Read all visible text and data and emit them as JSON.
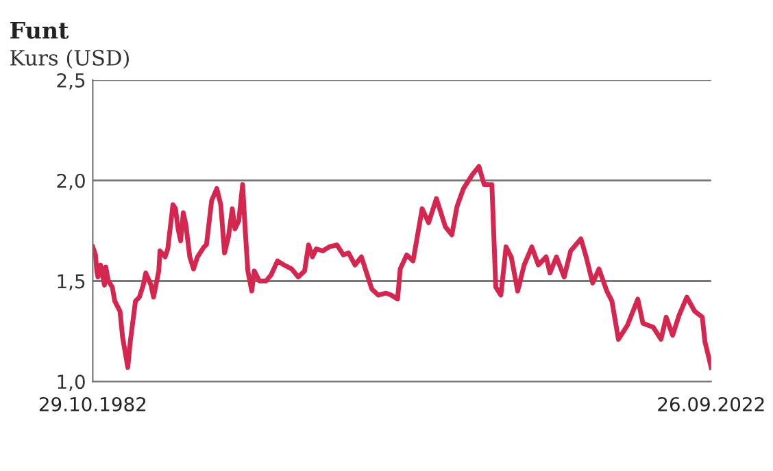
{
  "chart_data": {
    "type": "line",
    "title": "Funt",
    "subtitle": "Kurs (USD)",
    "x": [
      "1982-10-29",
      "1983-01",
      "1983-02",
      "1983-03",
      "1983-05",
      "1983-08",
      "1983-09",
      "1983-11",
      "1984-02",
      "1984-04",
      "1984-08",
      "1984-10",
      "1985-02",
      "1985-04",
      "1985-08",
      "1985-11",
      "1986-02",
      "1986-04",
      "1986-08",
      "1986-10",
      "1987-02",
      "1987-03",
      "1987-07",
      "1987-09",
      "1988-01",
      "1988-03",
      "1988-05",
      "1988-07",
      "1988-09",
      "1988-11",
      "1989-02",
      "1989-05",
      "1989-08",
      "1990-01",
      "1990-03",
      "1990-07",
      "1990-11",
      "1991-02",
      "1991-05",
      "1991-08",
      "1991-11",
      "1992-01",
      "1992-04",
      "1992-07",
      "1992-09",
      "1992-11",
      "1993-02",
      "1993-04",
      "1993-08",
      "1994-01",
      "1994-05",
      "1994-10",
      "1995-03",
      "1995-09",
      "1996-02",
      "1996-07",
      "1996-10",
      "1997-01",
      "1997-04",
      "1997-09",
      "1998-02",
      "1998-08",
      "1999-01",
      "1999-05",
      "1999-10",
      "2000-03",
      "2000-08",
      "2000-11",
      "2001-04",
      "2001-10",
      "2002-02",
      "2002-07",
      "2002-09",
      "2003-02",
      "2003-07",
      "2004-02",
      "2004-07",
      "2005-01",
      "2005-08",
      "2006-01",
      "2006-05",
      "2006-10",
      "2007-05",
      "2007-10",
      "2008-02",
      "2008-08",
      "2008-11",
      "2009-03",
      "2009-07",
      "2009-11",
      "2010-04",
      "2010-09",
      "2011-03",
      "2011-08",
      "2012-02",
      "2012-05",
      "2012-10",
      "2013-04",
      "2013-09",
      "2014-05",
      "2014-09",
      "2015-02",
      "2015-07",
      "2016-01",
      "2016-05",
      "2016-10",
      "2017-05",
      "2018-01",
      "2018-05",
      "2019-01",
      "2019-07",
      "2019-11",
      "2020-04",
      "2020-09",
      "2021-03",
      "2021-09",
      "2022-03",
      "2022-05",
      "2022-09-26"
    ],
    "series": [
      {
        "color": "#d4264f",
        "values": [
          1.67,
          1.63,
          1.55,
          1.52,
          1.58,
          1.48,
          1.57,
          1.5,
          1.47,
          1.4,
          1.35,
          1.22,
          1.07,
          1.2,
          1.4,
          1.42,
          1.48,
          1.54,
          1.48,
          1.42,
          1.55,
          1.65,
          1.62,
          1.66,
          1.88,
          1.86,
          1.76,
          1.7,
          1.84,
          1.78,
          1.62,
          1.56,
          1.62,
          1.67,
          1.68,
          1.9,
          1.96,
          1.88,
          1.64,
          1.72,
          1.86,
          1.76,
          1.8,
          1.98,
          1.75,
          1.55,
          1.45,
          1.55,
          1.5,
          1.5,
          1.53,
          1.6,
          1.58,
          1.56,
          1.52,
          1.55,
          1.68,
          1.62,
          1.66,
          1.65,
          1.67,
          1.68,
          1.63,
          1.64,
          1.58,
          1.62,
          1.52,
          1.46,
          1.43,
          1.44,
          1.43,
          1.41,
          1.56,
          1.63,
          1.6,
          1.86,
          1.79,
          1.91,
          1.77,
          1.73,
          1.87,
          1.96,
          2.03,
          2.07,
          1.98,
          1.98,
          1.47,
          1.43,
          1.67,
          1.62,
          1.45,
          1.58,
          1.67,
          1.58,
          1.62,
          1.54,
          1.62,
          1.52,
          1.65,
          1.71,
          1.62,
          1.49,
          1.56,
          1.45,
          1.4,
          1.21,
          1.28,
          1.41,
          1.29,
          1.27,
          1.21,
          1.32,
          1.23,
          1.33,
          1.42,
          1.35,
          1.32,
          1.2,
          1.07
        ]
      }
    ],
    "xlim": [
      "1982-10-29",
      "2022-09-26"
    ],
    "xticks": [
      {
        "value": "1982-10-29",
        "label": "29.10.1982"
      },
      {
        "value": "2022-09-26",
        "label": "26.09.2022"
      }
    ],
    "ylim": [
      1.0,
      2.5
    ],
    "yticks": [
      {
        "value": 1.0,
        "label": "1,0"
      },
      {
        "value": 1.5,
        "label": "1,5"
      },
      {
        "value": 2.0,
        "label": "2,0"
      },
      {
        "value": 2.5,
        "label": "2,5"
      }
    ],
    "grid": "y",
    "legend": false,
    "line_style": "solid",
    "marker": "none"
  }
}
